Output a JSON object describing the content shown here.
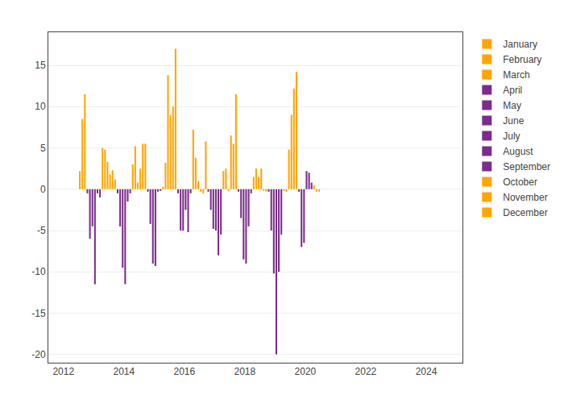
{
  "chart_data": {
    "type": "bar",
    "xlim": [
      2011.5,
      2025.2
    ],
    "xticks": [
      2012,
      2014,
      2016,
      2018,
      2020,
      2022,
      2024
    ],
    "ylim": [
      -21,
      19
    ],
    "yticks": [
      -20,
      -15,
      -10,
      -5,
      0,
      5,
      10,
      15
    ],
    "grid": "y",
    "legend": "right",
    "series": [
      {
        "name": "January",
        "color": "#FFA500",
        "x": [
          2012.5416666667,
          2013.5416666667,
          2014.5416666667,
          2015.5416666667,
          2016.5416666667,
          2017.5416666667,
          2018.5416666667,
          2019.5416666667
        ],
        "values": [
          2.2,
          1.8,
          2.5,
          9.0,
          -0.3,
          6.5,
          2.5,
          9.0
        ]
      },
      {
        "name": "February",
        "color": "#FFA500",
        "x": [
          2012.625,
          2013.625,
          2014.625,
          2015.625,
          2016.625,
          2017.625,
          2018.625,
          2019.625
        ],
        "values": [
          8.5,
          2.3,
          5.5,
          10.0,
          -0.5,
          5.5,
          -0.2,
          12.2
        ]
      },
      {
        "name": "March",
        "color": "#FFA500",
        "x": [
          2012.7083333333,
          2013.7083333333,
          2014.7083333333,
          2015.7083333333,
          2016.7083333333,
          2017.7083333333,
          2018.7083333333,
          2019.7083333333
        ],
        "values": [
          11.5,
          1.2,
          5.5,
          17.0,
          5.8,
          11.5,
          -0.3,
          14.2
        ]
      },
      {
        "name": "April",
        "color": "#7B2D8B",
        "x": [
          2012.7916666667,
          2013.7916666667,
          2014.7916666667,
          2015.7916666667,
          2016.7916666667,
          2017.7916666667,
          2018.7916666667,
          2019.7916666667
        ],
        "values": [
          -0.5,
          -0.5,
          -0.3,
          -0.5,
          -0.3,
          -0.3,
          -0.3,
          -0.3
        ]
      },
      {
        "name": "May",
        "color": "#7B2D8B",
        "x": [
          2012.875,
          2013.875,
          2014.875,
          2015.875,
          2016.875,
          2017.875,
          2018.875,
          2019.875
        ],
        "values": [
          -6.0,
          -4.5,
          -4.2,
          -5.0,
          -2.5,
          -3.5,
          -5.0,
          -7.0
        ]
      },
      {
        "name": "June",
        "color": "#7B2D8B",
        "x": [
          2012.9583333333,
          2013.9583333333,
          2014.9583333333,
          2015.9583333333,
          2016.9583333333,
          2017.9583333333,
          2018.9583333333,
          2019.9583333333
        ],
        "values": [
          -4.5,
          -9.5,
          -9.0,
          -5.0,
          -4.8,
          -8.5,
          -10.2,
          -6.5
        ]
      },
      {
        "name": "July",
        "color": "#7B2D8B",
        "x": [
          2013.0416666667,
          2014.0416666667,
          2015.0416666667,
          2016.0416666667,
          2017.0416666667,
          2018.0416666667,
          2019.0416666667,
          2020.0416666667
        ],
        "values": [
          -11.5,
          -11.5,
          -9.3,
          -2.5,
          -5.0,
          -9.0,
          -20.0,
          2.2
        ]
      },
      {
        "name": "August",
        "color": "#7B2D8B",
        "x": [
          2013.125,
          2014.125,
          2015.125,
          2016.125,
          2017.125,
          2018.125,
          2019.125,
          2020.125
        ],
        "values": [
          -0.5,
          -1.5,
          -0.3,
          -5.2,
          -8.0,
          -4.5,
          -10.0,
          2.0
        ]
      },
      {
        "name": "September",
        "color": "#7B2D8B",
        "x": [
          2013.2083333333,
          2014.2083333333,
          2015.2083333333,
          2016.2083333333,
          2017.2083333333,
          2018.2083333333,
          2019.2083333333,
          2020.2083333333
        ],
        "values": [
          -1.0,
          -0.5,
          -0.2,
          -0.5,
          -5.5,
          -0.5,
          -5.5,
          0.8
        ]
      },
      {
        "name": "October",
        "color": "#FFA500",
        "x": [
          2013.2916666667,
          2014.2916666667,
          2015.2916666667,
          2016.2916666667,
          2017.2916666667,
          2018.2916666667,
          2019.2916666667,
          2020.2916666667
        ],
        "values": [
          5.0,
          3.0,
          0.3,
          7.2,
          2.2,
          1.5,
          -0.2,
          0.5
        ]
      },
      {
        "name": "November",
        "color": "#FFA500",
        "x": [
          2013.375,
          2014.375,
          2015.375,
          2016.375,
          2017.375,
          2018.375,
          2019.375,
          2020.375
        ],
        "values": [
          4.8,
          5.2,
          3.2,
          3.8,
          2.5,
          2.5,
          -0.3,
          -0.3
        ]
      },
      {
        "name": "December",
        "color": "#FFA500",
        "x": [
          2013.4583333333,
          2014.4583333333,
          2015.4583333333,
          2016.4583333333,
          2017.4583333333,
          2018.4583333333,
          2019.4583333333,
          2020.4583333333
        ],
        "values": [
          3.3,
          0.8,
          13.8,
          1.0,
          -0.2,
          1.5,
          4.8,
          -0.3
        ]
      }
    ]
  }
}
